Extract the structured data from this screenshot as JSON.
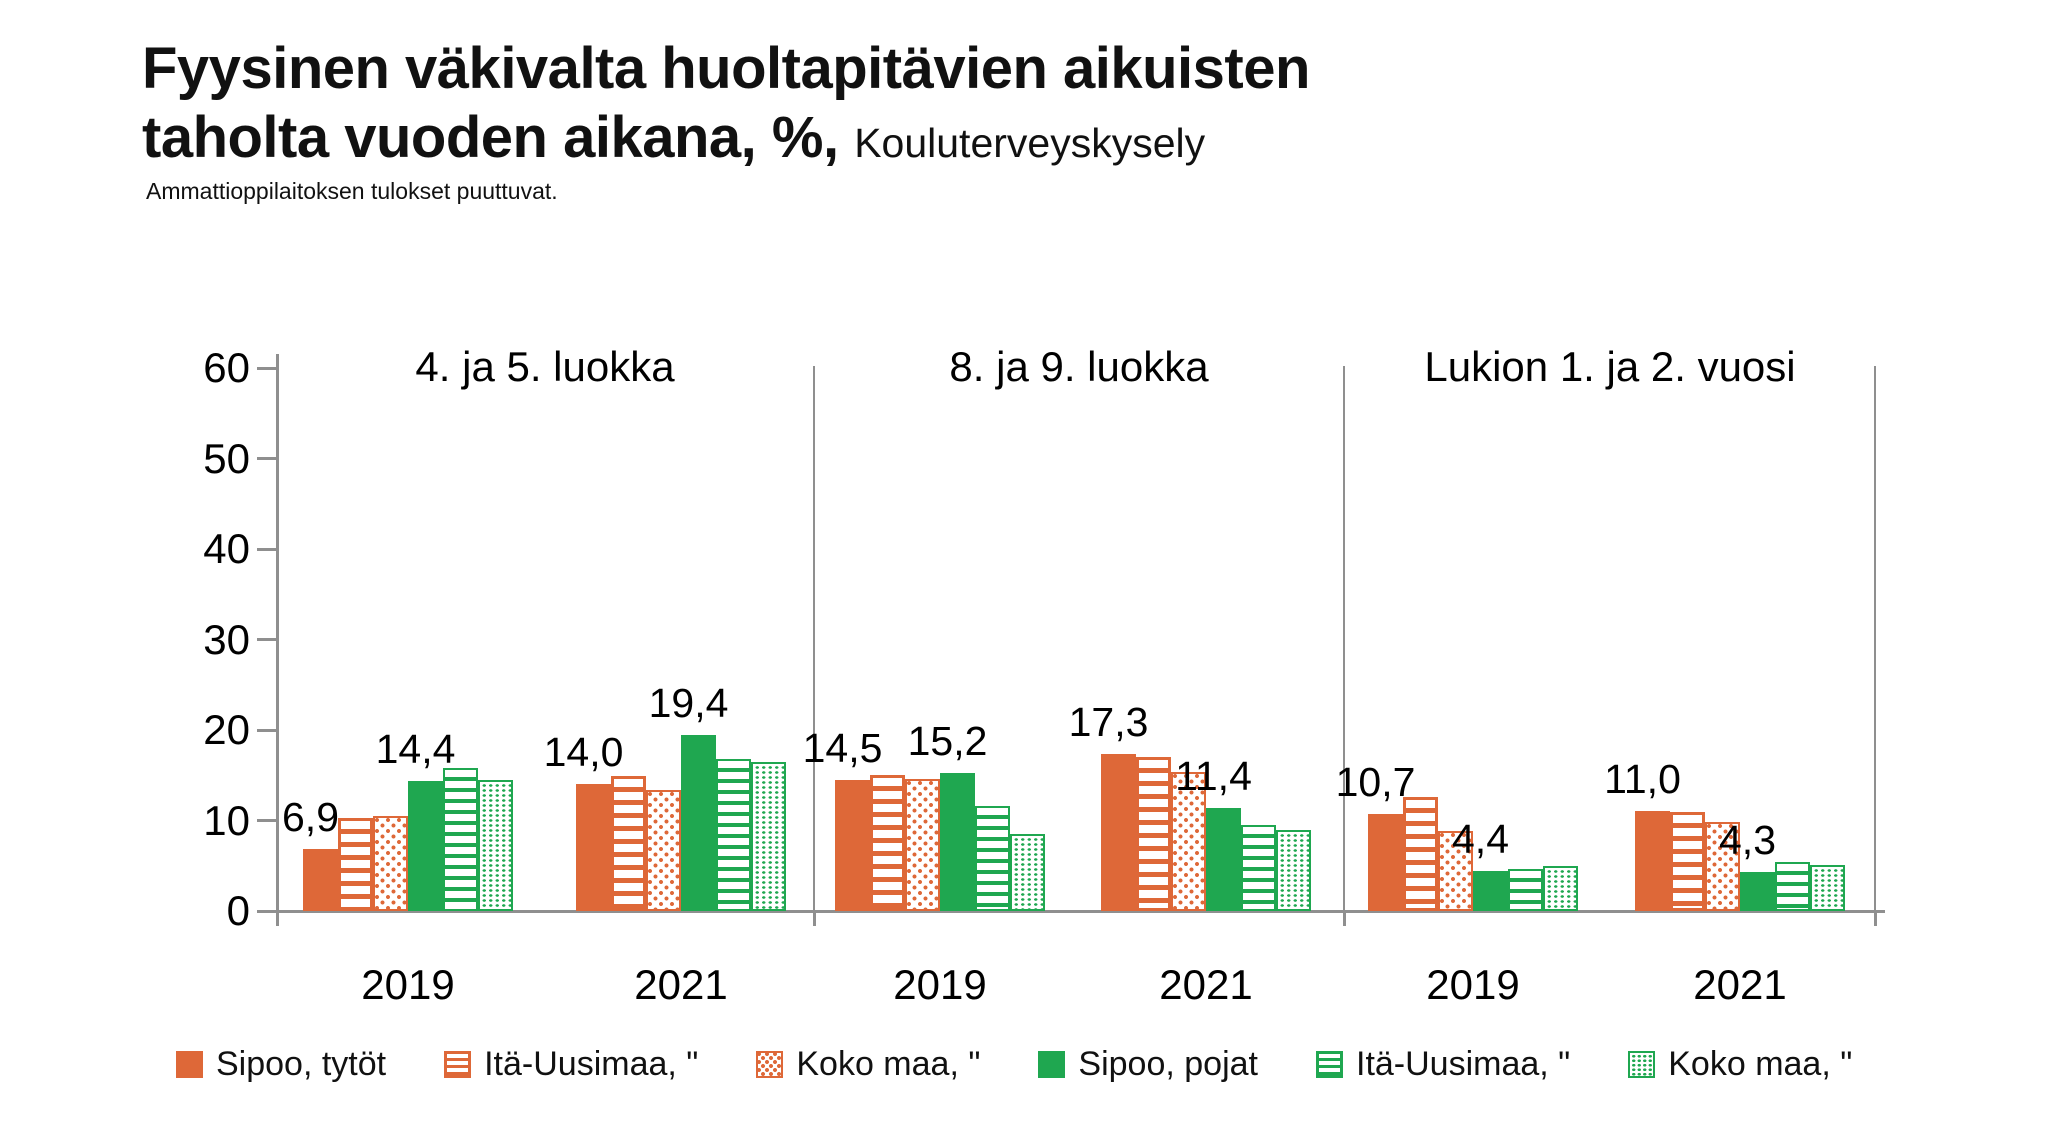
{
  "title": {
    "main": "Fyysinen väkivalta huoltapitävien aikuisten taholta vuoden aikana, %,",
    "suffix": "Kouluterveyskysely"
  },
  "subtitle": "Ammattioppilaitoksen tulokset puuttuvat.",
  "colors": {
    "orange": "#DE6838",
    "green": "#1FA750",
    "axis_gray": "#8F8F8F",
    "text": "#000000"
  },
  "y_axis": {
    "min": 0,
    "max": 60,
    "ticks": [
      0,
      10,
      20,
      30,
      40,
      50,
      60
    ]
  },
  "x_axis": {
    "group_labels": [
      "2019",
      "2021"
    ]
  },
  "legend": {
    "items": [
      {
        "label": "Sipoo, tytöt",
        "color": "orange",
        "pattern": "solid"
      },
      {
        "label": "Itä-Uusimaa, \"",
        "color": "orange",
        "pattern": "hstripe"
      },
      {
        "label": "Koko maa, \"",
        "color": "orange",
        "pattern": "dots"
      },
      {
        "label": "Sipoo, pojat",
        "color": "green",
        "pattern": "solid"
      },
      {
        "label": "Itä-Uusimaa, \"",
        "color": "green",
        "pattern": "hstripe"
      },
      {
        "label": "Koko maa, \"",
        "color": "green",
        "pattern": "dots"
      }
    ]
  },
  "chart_data": {
    "type": "bar",
    "title": "Fyysinen väkivalta huoltapitävien aikuisten taholta vuoden aikana, %, Kouluterveyskysely",
    "note": "Ammattioppilaitoksen tulokset puuttuvat.",
    "ylabel": "%",
    "ylim": [
      0,
      60
    ],
    "grid": false,
    "legend_position": "bottom",
    "decimal_separator": ",",
    "series": [
      "Sipoo, tytöt",
      "Itä-Uusimaa, \"",
      "Koko maa, \"",
      "Sipoo, pojat",
      "Itä-Uusimaa, \"",
      "Koko maa, \""
    ],
    "panels": [
      {
        "title": "4. ja 5. luokka",
        "groups": [
          {
            "year": "2019",
            "values": [
              6.9,
              10.3,
              10.5,
              14.4,
              15.8,
              14.5
            ],
            "labels": {
              "0": "6,9",
              "3": "14,4"
            }
          },
          {
            "year": "2021",
            "values": [
              14.0,
              14.9,
              13.4,
              19.4,
              16.8,
              16.5
            ],
            "labels": {
              "0": "14,0",
              "3": "19,4"
            }
          }
        ]
      },
      {
        "title": "8. ja 9. luokka",
        "groups": [
          {
            "year": "2019",
            "values": [
              14.5,
              15.0,
              14.6,
              15.2,
              11.6,
              8.5
            ],
            "labels": {
              "0": "14,5",
              "3": "15,2"
            }
          },
          {
            "year": "2021",
            "values": [
              17.3,
              17.0,
              15.4,
              11.4,
              9.5,
              9.0
            ],
            "labels": {
              "0": "17,3",
              "3": "11,4"
            }
          }
        ]
      },
      {
        "title": "Lukion 1. ja 2. vuosi",
        "groups": [
          {
            "year": "2019",
            "values": [
              10.7,
              12.6,
              8.8,
              4.4,
              4.6,
              5.0
            ],
            "labels": {
              "0": "10,7",
              "3": "4,4"
            }
          },
          {
            "year": "2021",
            "values": [
              11.0,
              10.9,
              9.8,
              4.3,
              5.4,
              5.1
            ],
            "labels": {
              "0": "11,0",
              "3": "4,3"
            }
          }
        ]
      }
    ]
  }
}
